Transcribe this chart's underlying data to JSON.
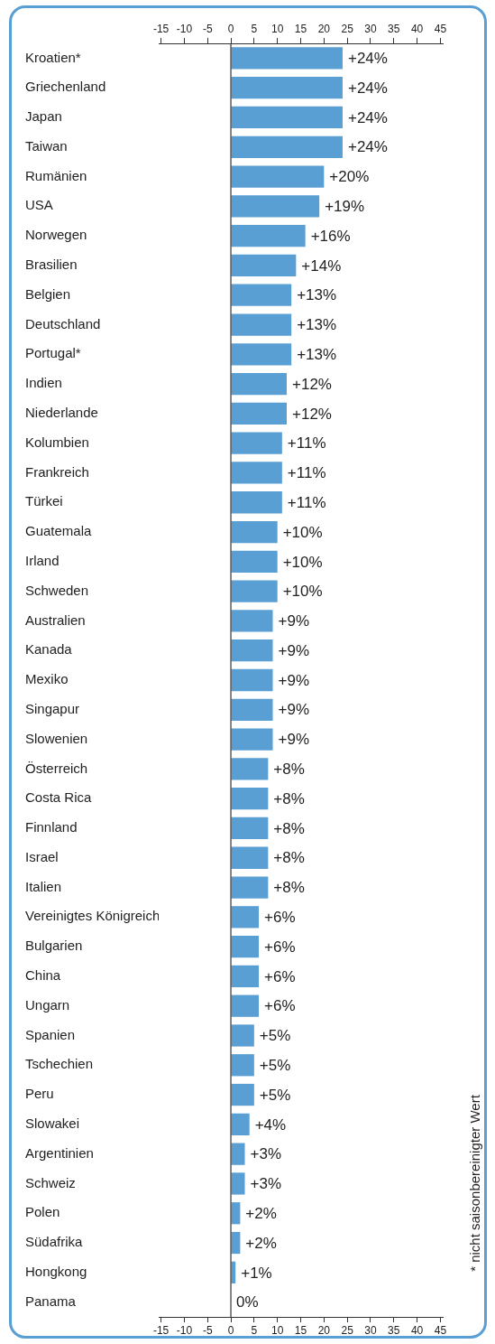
{
  "chart_data": {
    "type": "bar",
    "orientation": "horizontal",
    "categories": [
      "Kroatien*",
      "Griechenland",
      "Japan",
      "Taiwan",
      "Rumänien",
      "USA",
      "Norwegen",
      "Brasilien",
      "Belgien",
      "Deutschland",
      "Portugal*",
      "Indien",
      "Niederlande",
      "Kolumbien",
      "Frankreich",
      "Türkei",
      "Guatemala",
      "Irland",
      "Schweden",
      "Australien",
      "Kanada",
      "Mexiko",
      "Singapur",
      "Slowenien",
      "Österreich",
      "Costa Rica",
      "Finnland",
      "Israel",
      "Italien",
      "Vereinigtes Königreich",
      "Bulgarien",
      "China",
      "Ungarn",
      "Spanien",
      "Tschechien",
      "Peru",
      "Slowakei",
      "Argentinien",
      "Schweiz",
      "Polen",
      "Südafrika",
      "Hongkong",
      "Panama"
    ],
    "values": [
      24,
      24,
      24,
      24,
      20,
      19,
      16,
      14,
      13,
      13,
      13,
      12,
      12,
      11,
      11,
      11,
      10,
      10,
      10,
      9,
      9,
      9,
      9,
      9,
      8,
      8,
      8,
      8,
      8,
      6,
      6,
      6,
      6,
      5,
      5,
      5,
      4,
      3,
      3,
      2,
      2,
      1,
      0
    ],
    "value_labels": [
      "+24%",
      "+24%",
      "+24%",
      "+24%",
      "+20%",
      "+19%",
      "+16%",
      "+14%",
      "+13%",
      "+13%",
      "+13%",
      "+12%",
      "+12%",
      "+11%",
      "+11%",
      "+11%",
      "+10%",
      "+10%",
      "+10%",
      "+9%",
      "+9%",
      "+9%",
      "+9%",
      "+9%",
      "+8%",
      "+8%",
      "+8%",
      "+8%",
      "+8%",
      "+6%",
      "+6%",
      "+6%",
      "+6%",
      "+5%",
      "+5%",
      "+5%",
      "+4%",
      "+3%",
      "+3%",
      "+2%",
      "+2%",
      "+1%",
      "0%"
    ],
    "color": "#5a9fd4",
    "xlim": [
      -15.5,
      45.5
    ],
    "xticks": [
      -15,
      -10,
      -5,
      0,
      5,
      10,
      15,
      20,
      25,
      30,
      35,
      40,
      45
    ],
    "x2lim": [
      -15.5,
      45.5
    ],
    "x2ticks": [
      -15,
      -10,
      -5,
      0,
      5,
      10,
      15,
      20,
      25,
      30,
      35,
      40,
      45
    ],
    "grid": false,
    "legend": false,
    "ref_lines": [
      {
        "axis": "x",
        "value": 0,
        "color": "#333333"
      }
    ],
    "annotations": [
      "* nicht saisonbereinigter Wert"
    ]
  }
}
